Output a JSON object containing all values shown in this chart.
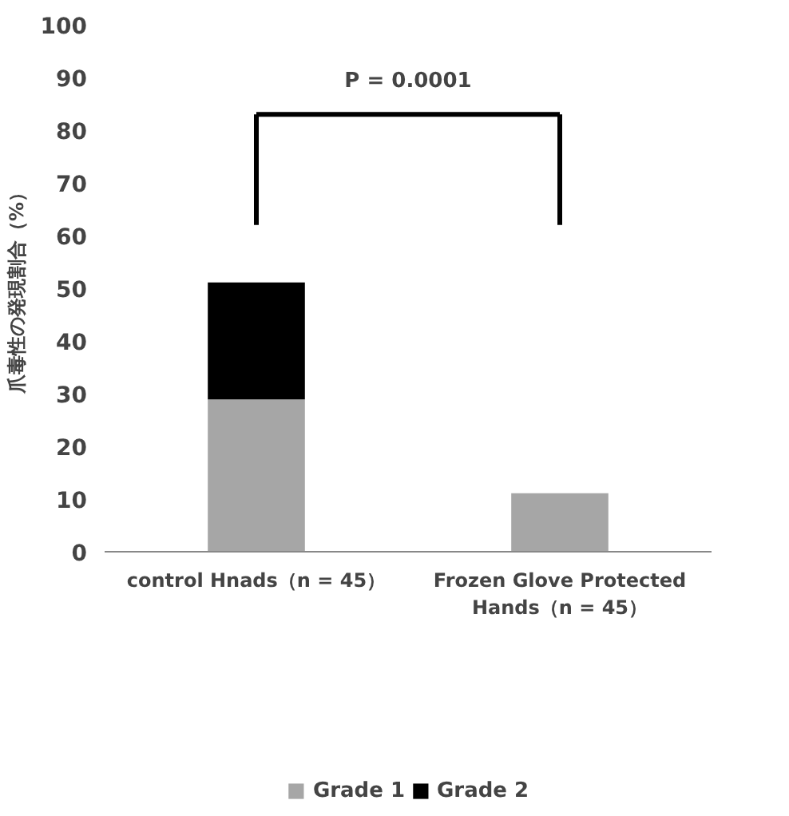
{
  "chart_data": {
    "type": "bar",
    "stacked": true,
    "ylabel": "爪毒性の発現割合（%）",
    "categories": [
      "control Hnads（n = 45）",
      "Frozen Glove Protected\nHands（n = 45）"
    ],
    "series": [
      {
        "name": "Grade 1",
        "color": "#a6a6a6",
        "values": [
          28.9,
          11.1
        ]
      },
      {
        "name": "Grade 2",
        "color": "#000000",
        "values": [
          22.2,
          0
        ]
      }
    ],
    "ylim": [
      0,
      100
    ],
    "yticks": [
      0,
      10,
      20,
      30,
      40,
      50,
      60,
      70,
      80,
      90,
      100
    ],
    "annotations": [
      "P = 0.0001"
    ],
    "legend": "bottom",
    "grid": false
  }
}
